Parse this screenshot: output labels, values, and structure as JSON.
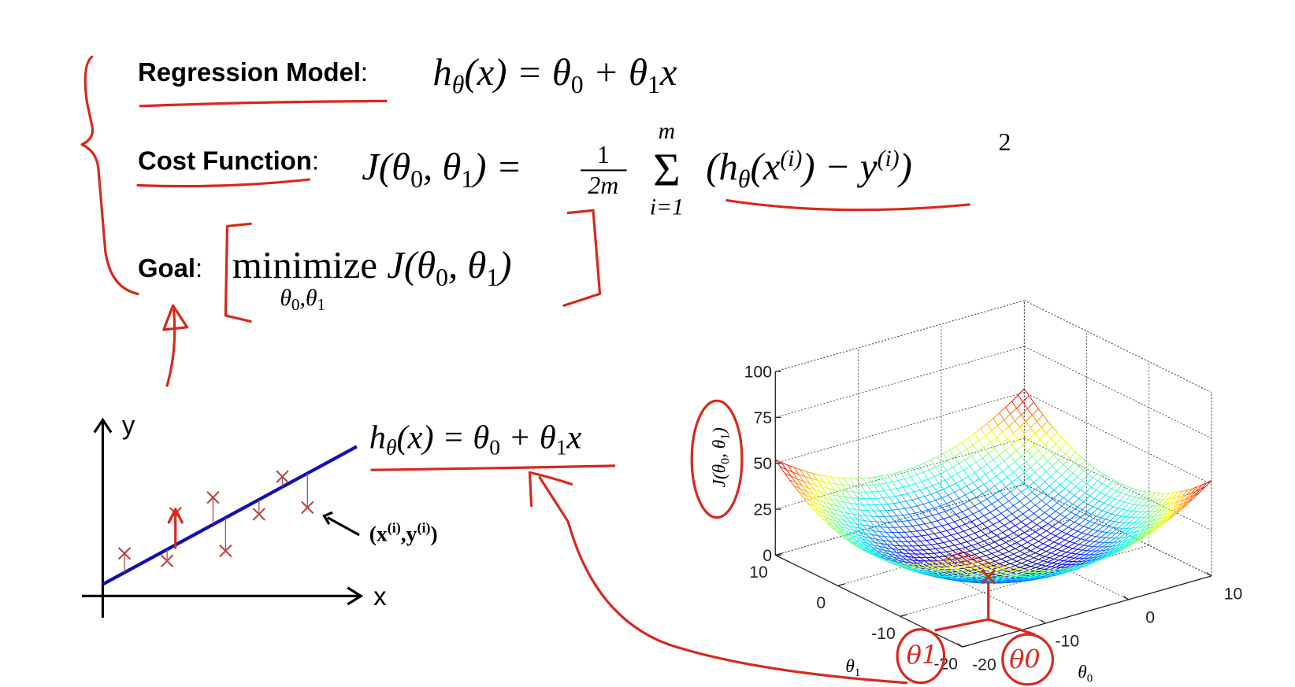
{
  "regression_model": {
    "label": [
      "Regression Model",
      ":"
    ],
    "formula": [
      "h",
      "θ",
      "(x) = θ",
      "0",
      " + θ",
      "1",
      "x"
    ]
  },
  "cost_function": {
    "label": [
      "Cost Function",
      ":"
    ],
    "lhs": [
      "J(θ",
      "0",
      ", θ",
      "1",
      ") ="
    ],
    "fraction": [
      "1",
      "2m"
    ],
    "sum": [
      "Σ",
      "m",
      "i=1"
    ],
    "term": [
      "(h",
      "θ",
      "(x",
      "(i)",
      ") − y",
      "(i)",
      ")"
    ],
    "power": "2"
  },
  "goal": {
    "label": [
      "Goal",
      ":"
    ],
    "formula": [
      "minimize ",
      "J(θ",
      "0",
      ", θ",
      "1",
      ")"
    ],
    "under": [
      "θ",
      "0",
      ",θ",
      "1"
    ]
  },
  "plot_2d": {
    "y_label": "y",
    "x_label": "x",
    "formula": [
      "h",
      "θ",
      "(x) = θ",
      "0",
      " + θ",
      "1",
      "x"
    ],
    "point_label": [
      "(x",
      "(i)",
      ",y",
      "(i)",
      ")"
    ]
  },
  "plot_3d": {
    "z_label": [
      "J(θ",
      "0",
      ", θ",
      "1",
      ")"
    ],
    "z_ticks": [
      100,
      75,
      50,
      25,
      0
    ],
    "theta1_ticks": [
      10,
      0,
      -10,
      -20
    ],
    "theta0_ticks": [
      -20,
      -10,
      0,
      10
    ],
    "theta1_label": [
      "θ",
      "1"
    ],
    "theta0_label": [
      "θ",
      "0"
    ]
  },
  "annotations": [
    "θ1",
    "θ0"
  ]
}
